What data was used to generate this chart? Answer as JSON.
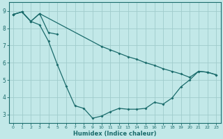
{
  "xlabel": "Humidex (Indice chaleur)",
  "bg_color": "#c2e8e8",
  "grid_color": "#a0cccc",
  "line_color": "#1a6b6b",
  "xlim": [
    -0.5,
    23.5
  ],
  "ylim": [
    2.5,
    9.5
  ],
  "xticks": [
    0,
    1,
    2,
    3,
    4,
    5,
    6,
    7,
    8,
    9,
    10,
    11,
    12,
    13,
    14,
    15,
    16,
    17,
    18,
    19,
    20,
    21,
    22,
    23
  ],
  "yticks": [
    3,
    4,
    5,
    6,
    7,
    8,
    9
  ],
  "line1_x": [
    0,
    1,
    2,
    3,
    10,
    11,
    12,
    13,
    14,
    15,
    16,
    17,
    18,
    19,
    20,
    21,
    22,
    23
  ],
  "line1_y": [
    8.8,
    8.95,
    8.4,
    8.85,
    6.95,
    6.75,
    6.55,
    6.35,
    6.2,
    6.0,
    5.85,
    5.65,
    5.5,
    5.35,
    5.15,
    5.5,
    5.45,
    5.3
  ],
  "line2_x": [
    0,
    1,
    2,
    3,
    4,
    5,
    6,
    7,
    8,
    9,
    10,
    11,
    12,
    13,
    14,
    15,
    16,
    17,
    18,
    19,
    20,
    21,
    22,
    23
  ],
  "line2_y": [
    8.8,
    8.95,
    8.4,
    8.2,
    7.25,
    5.9,
    4.65,
    3.5,
    3.35,
    2.78,
    2.9,
    3.15,
    3.35,
    3.3,
    3.3,
    3.35,
    3.7,
    3.6,
    3.95,
    4.6,
    5.0,
    5.5,
    5.45,
    5.3
  ],
  "line3_x": [
    0,
    1,
    2,
    3,
    4,
    5
  ],
  "line3_y": [
    8.8,
    8.95,
    8.4,
    8.85,
    7.75,
    7.65
  ]
}
